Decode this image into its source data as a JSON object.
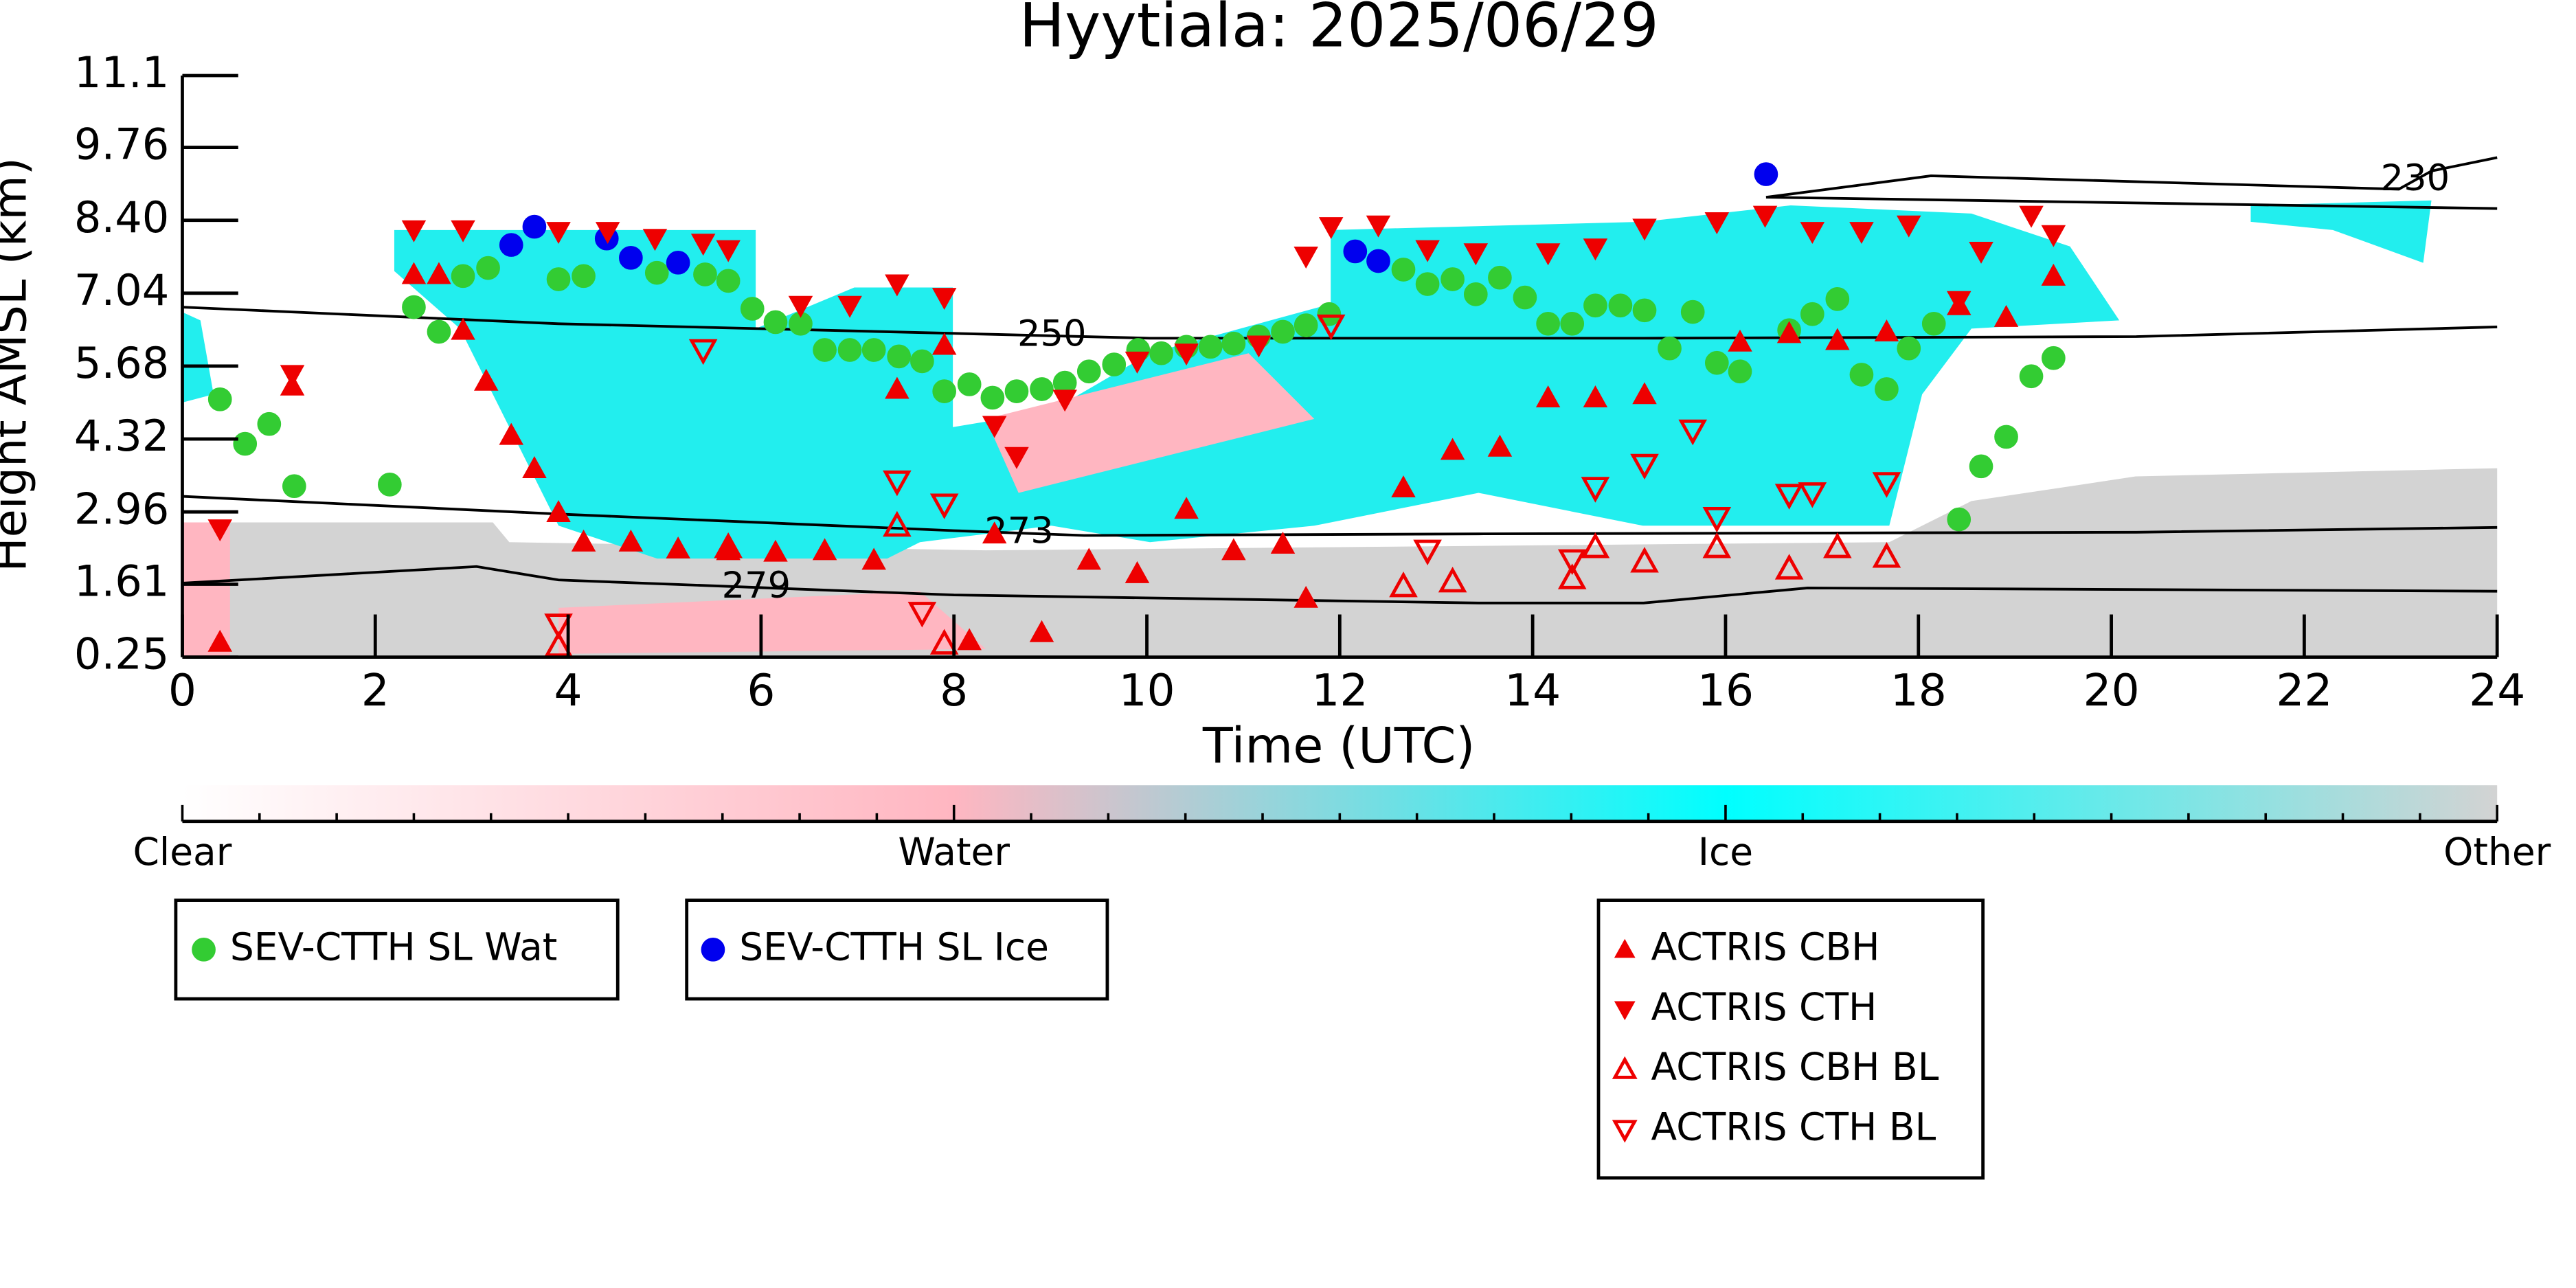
{
  "chart_data": {
    "type": "scatter",
    "title": "Hyytiala: 2025/06/29",
    "xlabel": "Time (UTC)",
    "ylabel": "Height AMSL (km)",
    "xlim": [
      0,
      24
    ],
    "xticks": [
      0,
      2,
      4,
      6,
      8,
      10,
      12,
      14,
      16,
      18,
      20,
      22,
      24
    ],
    "ylim": [
      0.25,
      11.1
    ],
    "yticks": [
      0.25,
      1.61,
      2.96,
      4.32,
      5.68,
      7.04,
      {
        "value": 8.4,
        "label": "8.40"
      },
      9.76,
      11.1
    ],
    "colorbar": {
      "labels": [
        "Clear",
        "Water",
        "Ice",
        "Other"
      ],
      "colors": [
        "#ffffff",
        "#ffb6c1",
        "#00ffff",
        "#d3d3d3"
      ]
    },
    "contours": [
      {
        "label": 250,
        "x": [
          0,
          3.9,
          8,
          10.03,
          15.15,
          20.26,
          24
        ],
        "y": [
          6.78,
          6.47,
          6.29,
          6.2,
          6.2,
          6.23,
          6.41
        ]
      },
      {
        "label": 273,
        "x": [
          0,
          3.9,
          8,
          9.35,
          13.44,
          20.26,
          24
        ],
        "y": [
          3.25,
          2.92,
          2.61,
          2.52,
          2.55,
          2.58,
          2.67
        ]
      },
      {
        "label": 279,
        "x": [
          0,
          3.05,
          3.9,
          8,
          13.44,
          15.15,
          16.85,
          24
        ],
        "y": [
          1.63,
          1.94,
          1.69,
          1.41,
          1.26,
          1.26,
          1.54,
          1.48
        ]
      },
      {
        "label": 230,
        "x": [
          16.42,
          18.13,
          22.98,
          23.32,
          24,
          null,
          16.42,
          24
        ],
        "y": [
          8.83,
          9.23,
          8.98,
          9.32,
          9.57,
          null,
          8.83,
          8.62
        ]
      }
    ],
    "series": [
      {
        "name": "SEV-CTTH SL Wat",
        "color": "#33cc33",
        "marker": "circle",
        "x": [
          0.39,
          0.65,
          0.9,
          1.16,
          2.15,
          2.4,
          2.66,
          2.91,
          3.17,
          3.9,
          4.16,
          4.92,
          5.42,
          5.66,
          5.91,
          6.15,
          6.41,
          6.66,
          6.92,
          7.17,
          7.43,
          7.67,
          7.9,
          8.16,
          8.4,
          8.65,
          8.91,
          9.15,
          9.4,
          9.66,
          9.91,
          10.15,
          10.41,
          10.66,
          10.9,
          11.16,
          11.41,
          11.65,
          11.89,
          12.66,
          12.91,
          13.17,
          13.41,
          13.66,
          13.92,
          14.16,
          14.41,
          14.65,
          14.91,
          15.16,
          15.42,
          15.66,
          15.91,
          16.15,
          16.66,
          16.9,
          17.16,
          17.41,
          17.67,
          17.9,
          18.16,
          18.42,
          18.65,
          18.91,
          19.17,
          19.4
        ],
        "y": [
          5.06,
          4.23,
          4.6,
          3.44,
          3.47,
          6.78,
          6.32,
          7.36,
          7.51,
          7.3,
          7.36,
          7.42,
          7.39,
          7.27,
          6.75,
          6.5,
          6.47,
          5.98,
          5.98,
          5.98,
          5.86,
          5.77,
          5.21,
          5.34,
          5.09,
          5.21,
          5.25,
          5.37,
          5.58,
          5.71,
          5.98,
          5.92,
          6.04,
          6.04,
          6.1,
          6.23,
          6.32,
          6.44,
          6.65,
          7.48,
          7.21,
          7.3,
          7.02,
          7.33,
          6.96,
          6.47,
          6.47,
          6.81,
          6.81,
          6.72,
          6.01,
          6.69,
          5.74,
          5.58,
          6.35,
          6.65,
          6.93,
          5.52,
          5.25,
          6.01,
          6.47,
          2.82,
          3.81,
          4.36,
          5.49,
          5.83
        ]
      },
      {
        "name": "SEV-CTTH SL Ice",
        "color": "#0000ee",
        "marker": "circle",
        "x": [
          3.41,
          3.65,
          4.4,
          4.65,
          5.14,
          12.16,
          12.4,
          16.42
        ],
        "y": [
          7.94,
          8.28,
          8.06,
          7.7,
          7.61,
          7.82,
          7.64,
          9.26
        ]
      },
      {
        "name": "ACTRIS CBH",
        "color": "#ee0000",
        "marker": "up",
        "x": [
          0.39,
          1.14,
          2.4,
          2.66,
          2.91,
          3.15,
          3.41,
          3.65,
          3.9,
          4.16,
          4.65,
          5.14,
          5.66,
          6.15,
          6.66,
          7.17,
          7.41,
          7.9,
          8.16,
          8.42,
          8.91,
          9.4,
          9.9,
          10.41,
          10.9,
          11.41,
          11.65,
          12.66,
          13.17,
          13.66,
          14.16,
          14.65,
          15.16,
          16.15,
          16.66,
          17.16,
          17.67,
          18.42,
          18.91,
          19.4
        ],
        "y": [
          0.53,
          5.31,
          7.39,
          7.39,
          6.35,
          5.4,
          4.39,
          3.77,
          2.95,
          2.4,
          2.4,
          2.27,
          2.24,
          2.21,
          2.24,
          2.06,
          5.25,
          6.07,
          0.56,
          2.55,
          0.71,
          2.06,
          1.81,
          3.01,
          2.24,
          2.36,
          1.35,
          3.41,
          4.11,
          4.17,
          5.09,
          5.09,
          5.15,
          6.13,
          6.29,
          6.16,
          6.32,
          6.81,
          6.59,
          7.36
        ]
      },
      {
        "name": "ACTRIS CTH",
        "color": "#ee0000",
        "marker": "down",
        "x": [
          0.39,
          1.14,
          2.4,
          2.91,
          3.9,
          4.41,
          4.9,
          5.4,
          5.66,
          6.41,
          6.92,
          7.41,
          7.9,
          8.42,
          8.65,
          9.15,
          9.9,
          10.41,
          11.16,
          11.65,
          11.91,
          12.4,
          12.91,
          13.41,
          14.16,
          14.65,
          15.16,
          15.91,
          16.41,
          16.9,
          17.41,
          17.9,
          18.42,
          18.65,
          19.17,
          19.4
        ],
        "y": [
          2.64,
          5.52,
          8.22,
          8.22,
          8.19,
          8.19,
          8.06,
          7.97,
          7.85,
          6.81,
          6.81,
          7.21,
          6.96,
          4.57,
          3.99,
          5.06,
          5.77,
          5.92,
          6.07,
          7.73,
          8.28,
          8.31,
          7.85,
          7.79,
          7.79,
          7.88,
          8.25,
          8.37,
          8.49,
          8.19,
          8.19,
          8.31,
          6.9,
          7.82,
          8.49,
          8.13
        ]
      },
      {
        "name": "ACTRIS CBH BL",
        "color": "#ee0000",
        "marker": "up-open",
        "x": [
          3.9,
          5.66,
          7.41,
          7.9,
          12.66,
          13.17,
          14.41,
          14.65,
          15.16,
          15.91,
          16.66,
          17.16,
          17.67
        ],
        "y": [
          0.46,
          2.3,
          2.7,
          0.5,
          1.57,
          1.66,
          1.72,
          2.3,
          2.03,
          2.3,
          1.9,
          2.3,
          2.12
        ]
      },
      {
        "name": "ACTRIS CTH BL",
        "color": "#ee0000",
        "marker": "down-open",
        "x": [
          3.9,
          5.4,
          7.41,
          7.67,
          7.9,
          11.91,
          12.91,
          14.41,
          14.65,
          15.16,
          15.66,
          15.91,
          16.66,
          16.9,
          17.67
        ],
        "y": [
          0.86,
          5.98,
          3.53,
          1.08,
          3.1,
          6.44,
          2.24,
          2.06,
          3.41,
          3.84,
          4.48,
          2.85,
          3.28,
          3.31,
          3.5
        ]
      }
    ]
  }
}
